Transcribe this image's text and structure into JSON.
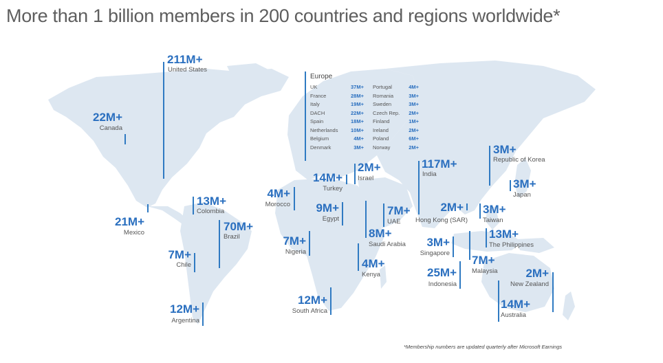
{
  "title": "More than 1 billion members in 200 countries and regions worldwide*",
  "footnote": "*Membership numbers are updated quarterly after Microsoft Earnings",
  "accent_color": "#2a6fbf",
  "land_color": "#dde7f1",
  "europe": {
    "label": "Europe",
    "col1": [
      {
        "name": "UK",
        "value": "37M+"
      },
      {
        "name": "France",
        "value": "28M+"
      },
      {
        "name": "Italy",
        "value": "19M+"
      },
      {
        "name": "DACH",
        "value": "22M+"
      },
      {
        "name": "Spain",
        "value": "18M+"
      },
      {
        "name": "Netherlands",
        "value": "10M+"
      },
      {
        "name": "Belgium",
        "value": "4M+"
      },
      {
        "name": "Denmark",
        "value": "3M+"
      }
    ],
    "col2": [
      {
        "name": "Portugal",
        "value": "4M+"
      },
      {
        "name": "Romania",
        "value": "3M+"
      },
      {
        "name": "Sweden",
        "value": "3M+"
      },
      {
        "name": "Czech Rep.",
        "value": "2M+"
      },
      {
        "name": "Finland",
        "value": "1M+"
      },
      {
        "name": "Ireland",
        "value": "2M+"
      },
      {
        "name": "Poland",
        "value": "6M+"
      },
      {
        "name": "Norway",
        "value": "2M+"
      }
    ]
  },
  "regions": {
    "us": {
      "value": "211M+",
      "name": "United States"
    },
    "canada": {
      "value": "22M+",
      "name": "Canada"
    },
    "mexico": {
      "value": "21M+",
      "name": "Mexico"
    },
    "colombia": {
      "value": "13M+",
      "name": "Colombia"
    },
    "brazil": {
      "value": "70M+",
      "name": "Brazil"
    },
    "chile": {
      "value": "7M+",
      "name": "Chile"
    },
    "argentina": {
      "value": "12M+",
      "name": "Argentina"
    },
    "morocco": {
      "value": "4M+",
      "name": "Morocco"
    },
    "turkey": {
      "value": "14M+",
      "name": "Turkey"
    },
    "israel": {
      "value": "2M+",
      "name": "Israel"
    },
    "egypt": {
      "value": "9M+",
      "name": "Egypt"
    },
    "nigeria": {
      "value": "7M+",
      "name": "Nigeria"
    },
    "saudi": {
      "value": "8M+",
      "name": "Saudi Arabia"
    },
    "uae": {
      "value": "7M+",
      "name": "UAE"
    },
    "kenya": {
      "value": "4M+",
      "name": "Kenya"
    },
    "south_africa": {
      "value": "12M+",
      "name": "South Africa"
    },
    "india": {
      "value": "117M+",
      "name": "India"
    },
    "hong_kong": {
      "value": "2M+",
      "name": "Hong Kong (SAR)"
    },
    "taiwan": {
      "value": "3M+",
      "name": "Taiwan"
    },
    "korea": {
      "value": "3M+",
      "name": "Republic of Korea"
    },
    "japan": {
      "value": "3M+",
      "name": "Japan"
    },
    "philippines": {
      "value": "13M+",
      "name": "The Philippines"
    },
    "singapore": {
      "value": "3M+",
      "name": "Singapore"
    },
    "malaysia": {
      "value": "7M+",
      "name": "Malaysia"
    },
    "indonesia": {
      "value": "25M+",
      "name": "Indonesia"
    },
    "new_zealand": {
      "value": "2M+",
      "name": "New Zealand"
    },
    "australia": {
      "value": "14M+",
      "name": "Australia"
    }
  }
}
